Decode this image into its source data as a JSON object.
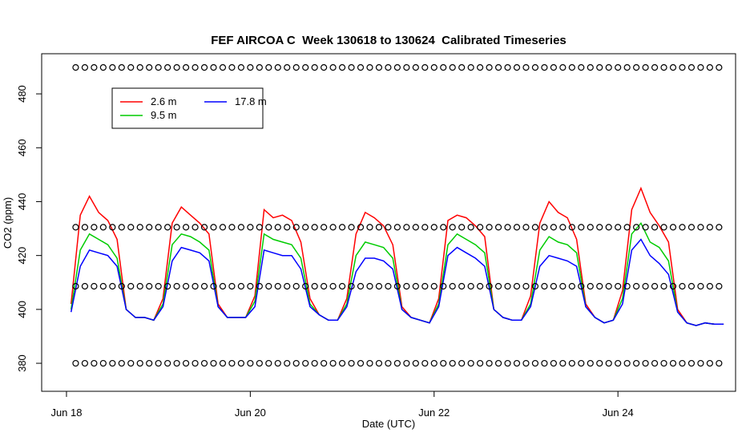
{
  "chart_data": {
    "type": "line",
    "title": "FEF AIRCOA C  Week 130618 to 130624  Calibrated Timeseries",
    "xlabel": "Date (UTC)",
    "ylabel": "CO2 (ppm)",
    "xlim": [
      17.73,
      25.28
    ],
    "xticks": [
      {
        "value": 18,
        "label": "Jun 18"
      },
      {
        "value": 20,
        "label": "Jun 20"
      },
      {
        "value": 22,
        "label": "Jun 22"
      },
      {
        "value": 24,
        "label": "Jun 24"
      }
    ],
    "ylim": [
      369.6,
      494.9
    ],
    "yticks": [
      380,
      400,
      420,
      440,
      460,
      480
    ],
    "legend": "top-left",
    "x": [
      18.05,
      18.15,
      18.25,
      18.35,
      18.45,
      18.55,
      18.65,
      18.75,
      18.85,
      18.95,
      19.05,
      19.15,
      19.25,
      19.35,
      19.45,
      19.55,
      19.65,
      19.75,
      19.85,
      19.95,
      20.05,
      20.15,
      20.25,
      20.35,
      20.45,
      20.55,
      20.65,
      20.75,
      20.85,
      20.95,
      21.05,
      21.15,
      21.25,
      21.35,
      21.45,
      21.55,
      21.65,
      21.75,
      21.85,
      21.95,
      22.05,
      22.15,
      22.25,
      22.35,
      22.45,
      22.55,
      22.65,
      22.75,
      22.85,
      22.95,
      23.05,
      23.15,
      23.25,
      23.35,
      23.45,
      23.55,
      23.65,
      23.75,
      23.85,
      23.95,
      24.05,
      24.15,
      24.25,
      24.35,
      24.45,
      24.55,
      24.65,
      24.75,
      24.85,
      24.95,
      25.05,
      25.15
    ],
    "series": [
      {
        "name": "2.6 m",
        "color": "#ff0000",
        "values": [
          402,
          435,
          442,
          436,
          433,
          426,
          400,
          397,
          397,
          396,
          404,
          432,
          438,
          435,
          432,
          428,
          402,
          397,
          397,
          397,
          405,
          437,
          434,
          435,
          433,
          425,
          404,
          398,
          396,
          396,
          404,
          428,
          436,
          434,
          431,
          424,
          401,
          397,
          396,
          395,
          404,
          433,
          435,
          434,
          431,
          427,
          400,
          397,
          396,
          396,
          405,
          432,
          440,
          436,
          434,
          426,
          402,
          397,
          395,
          396,
          407,
          437,
          445,
          436,
          431,
          425,
          400,
          395,
          394,
          395,
          394.5,
          394.5
        ]
      },
      {
        "name": "9.5 m",
        "color": "#00cc00",
        "values": [
          400,
          422,
          428,
          426,
          424,
          419,
          400,
          397,
          397,
          396,
          402,
          424,
          428,
          427,
          425,
          422,
          401,
          397,
          397,
          397,
          403,
          428,
          426,
          425,
          424,
          419,
          402,
          398,
          396,
          396,
          402,
          420,
          425,
          424,
          423,
          419,
          400,
          397,
          396,
          395,
          402,
          424,
          428,
          426,
          424,
          421,
          400,
          397,
          396,
          396,
          402,
          422,
          427,
          425,
          424,
          421,
          401,
          397,
          395,
          396,
          404,
          428,
          432,
          425,
          423,
          418,
          399,
          395,
          394,
          395,
          394.5,
          394.5
        ]
      },
      {
        "name": "17.8 m",
        "color": "#0000ff",
        "values": [
          399,
          416,
          422,
          421,
          420,
          416,
          400,
          397,
          397,
          396,
          401,
          418,
          423,
          422,
          421,
          418,
          401,
          397,
          397,
          397,
          401,
          422,
          421,
          420,
          420,
          415,
          401,
          398,
          396,
          396,
          401,
          414,
          419,
          419,
          418,
          415,
          400,
          397,
          396,
          395,
          401,
          420,
          423,
          421,
          419,
          416,
          400,
          397,
          396,
          396,
          401,
          416,
          420,
          419,
          418,
          416,
          401,
          397,
          395,
          396,
          402,
          422,
          426,
          420,
          417,
          413,
          399,
          395,
          394,
          395,
          394.5,
          394.5
        ]
      }
    ],
    "marker_levels": [
      380,
      408.6,
      430.5,
      489.8
    ],
    "marker_x": [
      18.1,
      18.2,
      18.3,
      18.4,
      18.5,
      18.6,
      18.7,
      18.8,
      18.9,
      19.0,
      19.1,
      19.2,
      19.3,
      19.4,
      19.5,
      19.6,
      19.7,
      19.8,
      19.9,
      20.0,
      20.1,
      20.2,
      20.3,
      20.4,
      20.5,
      20.6,
      20.7,
      20.8,
      20.9,
      21.0,
      21.1,
      21.2,
      21.3,
      21.4,
      21.5,
      21.6,
      21.7,
      21.8,
      21.9,
      22.0,
      22.1,
      22.2,
      22.3,
      22.4,
      22.5,
      22.6,
      22.7,
      22.8,
      22.9,
      23.0,
      23.1,
      23.2,
      23.3,
      23.4,
      23.5,
      23.6,
      23.7,
      23.8,
      23.9,
      24.0,
      24.1,
      24.2,
      24.3,
      24.4,
      24.5,
      24.6,
      24.7,
      24.8,
      24.9,
      25.0,
      25.1
    ]
  }
}
